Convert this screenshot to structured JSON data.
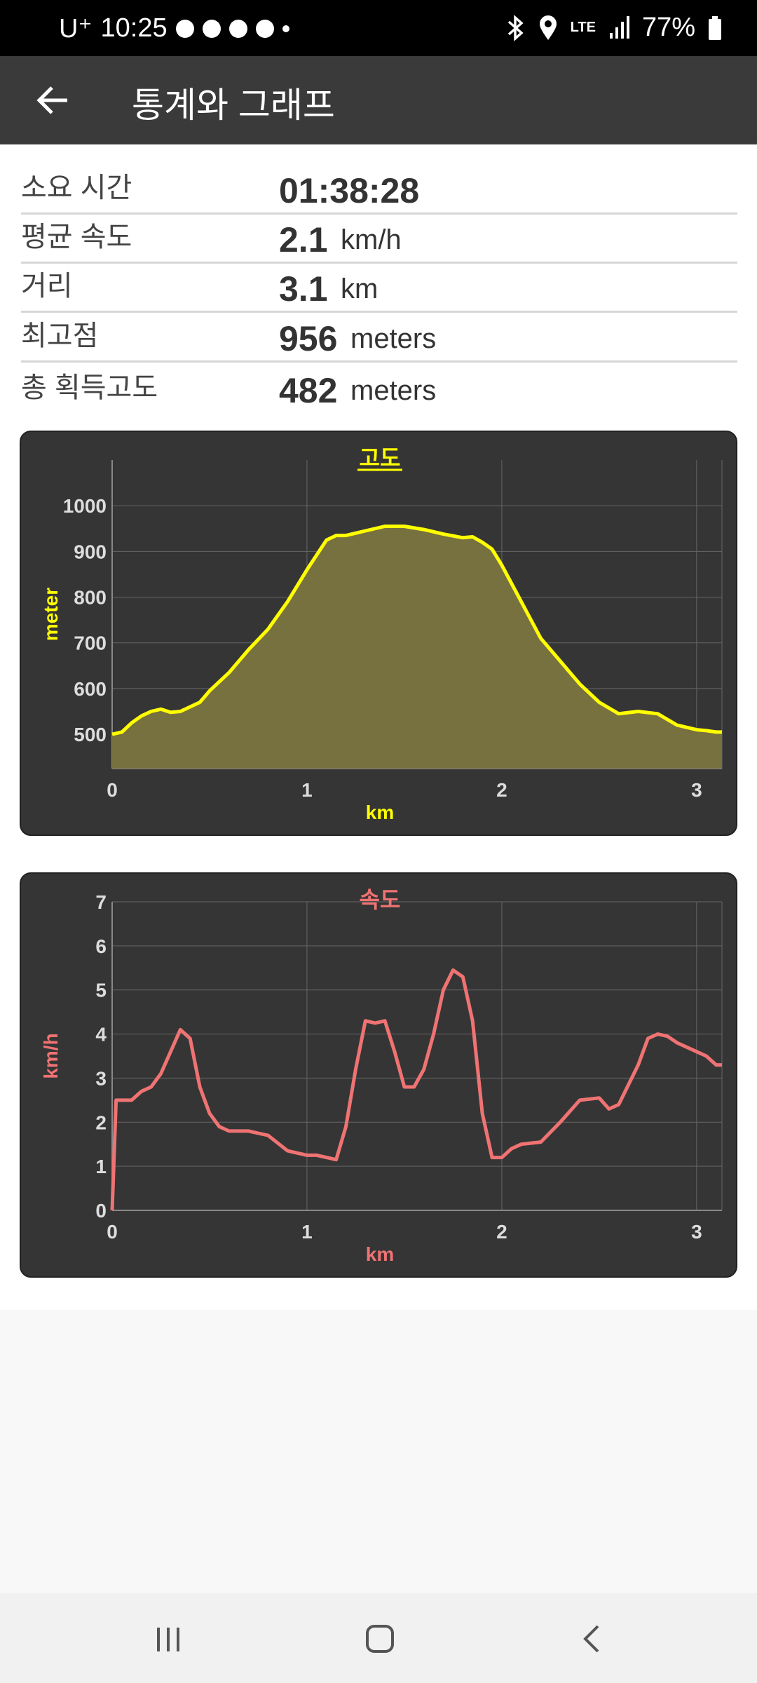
{
  "status_bar": {
    "carrier": "U⁺",
    "time": "10:25",
    "network": "LTE",
    "battery": "77%"
  },
  "app_bar": {
    "title": "통계와 그래프"
  },
  "stats": [
    {
      "label": "소요 시간",
      "value": "01:38:28",
      "unit": ""
    },
    {
      "label": "평균 속도",
      "value": "2.1",
      "unit": "km/h"
    },
    {
      "label": "거리",
      "value": "3.1",
      "unit": "km"
    },
    {
      "label": "최고점",
      "value": "956",
      "unit": "meters"
    },
    {
      "label": "총 획득고도",
      "value": "482",
      "unit": "meters"
    }
  ],
  "chart_data": [
    {
      "type": "area",
      "title": "고도",
      "xlabel": "km",
      "ylabel": "meter",
      "color": "#ffff00",
      "fill": "#77703f",
      "xlim": [
        0,
        3.13
      ],
      "ylim": [
        425,
        1100
      ],
      "xticks": [
        0,
        1,
        2,
        3
      ],
      "yticks": [
        500,
        600,
        700,
        800,
        900,
        1000
      ],
      "grid": true,
      "x": [
        0,
        0.05,
        0.1,
        0.15,
        0.2,
        0.25,
        0.3,
        0.35,
        0.4,
        0.45,
        0.5,
        0.6,
        0.7,
        0.8,
        0.9,
        1.0,
        1.1,
        1.15,
        1.2,
        1.3,
        1.4,
        1.5,
        1.6,
        1.7,
        1.8,
        1.85,
        1.9,
        1.95,
        2.0,
        2.1,
        2.2,
        2.3,
        2.4,
        2.5,
        2.6,
        2.7,
        2.8,
        2.9,
        3.0,
        3.05,
        3.1,
        3.13
      ],
      "y": [
        500,
        505,
        525,
        540,
        550,
        555,
        548,
        550,
        560,
        570,
        595,
        635,
        685,
        730,
        790,
        860,
        925,
        935,
        935,
        945,
        955,
        955,
        948,
        938,
        930,
        932,
        920,
        905,
        870,
        790,
        710,
        660,
        610,
        570,
        545,
        550,
        545,
        520,
        510,
        508,
        505,
        505
      ],
      "area_fill_ref": 425
    },
    {
      "type": "line",
      "title": "속도",
      "xlabel": "km",
      "ylabel": "km/h",
      "color": "#f07373",
      "xlim": [
        0,
        3.13
      ],
      "ylim": [
        0,
        7
      ],
      "xticks": [
        0,
        1,
        2,
        3
      ],
      "yticks": [
        0,
        1,
        2,
        3,
        4,
        5,
        6,
        7
      ],
      "grid": true,
      "x": [
        0,
        0.02,
        0.04,
        0.1,
        0.15,
        0.2,
        0.25,
        0.3,
        0.35,
        0.4,
        0.45,
        0.5,
        0.55,
        0.6,
        0.7,
        0.8,
        0.9,
        1.0,
        1.05,
        1.1,
        1.15,
        1.2,
        1.25,
        1.3,
        1.35,
        1.4,
        1.45,
        1.5,
        1.55,
        1.6,
        1.65,
        1.7,
        1.75,
        1.8,
        1.85,
        1.9,
        1.95,
        2.0,
        2.05,
        2.1,
        2.2,
        2.3,
        2.4,
        2.5,
        2.55,
        2.6,
        2.7,
        2.75,
        2.8,
        2.85,
        2.9,
        3.0,
        3.05,
        3.1,
        3.13
      ],
      "y": [
        0,
        2.5,
        2.5,
        2.5,
        2.7,
        2.8,
        3.1,
        3.6,
        4.1,
        3.9,
        2.8,
        2.2,
        1.9,
        1.8,
        1.8,
        1.7,
        1.35,
        1.25,
        1.25,
        1.2,
        1.15,
        1.9,
        3.2,
        4.3,
        4.25,
        4.3,
        3.6,
        2.8,
        2.8,
        3.2,
        4.0,
        5.0,
        5.45,
        5.3,
        4.3,
        2.2,
        1.2,
        1.2,
        1.4,
        1.5,
        1.55,
        2.0,
        2.5,
        2.55,
        2.3,
        2.4,
        3.3,
        3.9,
        4.0,
        3.95,
        3.8,
        3.6,
        3.5,
        3.3,
        3.3
      ]
    }
  ],
  "nav_bar": {
    "buttons": [
      "recent-apps",
      "home",
      "back"
    ]
  }
}
